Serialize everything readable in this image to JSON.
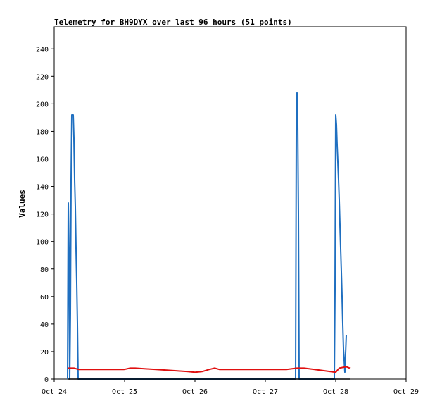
{
  "chart_data": {
    "type": "line",
    "title": "Telemetry for BH9DYX over last 96 hours (51 points)",
    "xlabel": "",
    "ylabel": "Values",
    "xlim": [
      "Oct 24",
      "Oct 29"
    ],
    "x_ticks": [
      "Oct 24",
      "Oct 25",
      "Oct 26",
      "Oct 27",
      "Oct 28",
      "Oct 29"
    ],
    "ylim": [
      0,
      256
    ],
    "y_ticks": [
      0,
      20,
      40,
      60,
      80,
      100,
      120,
      140,
      160,
      180,
      200,
      220,
      240
    ],
    "grid": false,
    "legend": "none",
    "series": [
      {
        "color": "#1f6fc0",
        "x": [
          0.19,
          0.2,
          0.21,
          0.22,
          0.23,
          0.24,
          0.25,
          0.26,
          0.27,
          0.28,
          0.29,
          0.3,
          0.31,
          0.32,
          0.33,
          0.34,
          0.35,
          0.36,
          0.37,
          0.38,
          0.39,
          0.4,
          3.41,
          3.42,
          3.43,
          3.44,
          3.45,
          3.46,
          3.47,
          3.48,
          3.49,
          3.5,
          3.51,
          3.52,
          3.53,
          3.98,
          3.99,
          4.0,
          4.01,
          4.02,
          4.03,
          4.04,
          4.05,
          4.06,
          4.07,
          4.08,
          4.09,
          4.1,
          4.11,
          4.13,
          4.15
        ],
        "values": [
          0,
          128,
          95,
          0,
          48,
          145,
          192,
          192,
          192,
          175,
          145,
          125,
          95,
          70,
          40,
          0,
          0,
          0,
          0,
          0,
          0,
          0,
          0,
          0,
          0,
          180,
          208,
          185,
          120,
          0,
          0,
          0,
          0,
          0,
          0,
          0,
          65,
          192,
          185,
          170,
          158,
          145,
          130,
          112,
          95,
          78,
          60,
          40,
          22,
          5,
          32
        ]
      },
      {
        "color": "#e01010",
        "x": [
          0.19,
          0.28,
          0.35,
          0.45,
          0.6,
          0.75,
          0.85,
          0.99,
          1.08,
          1.15,
          1.3,
          1.45,
          1.6,
          1.75,
          1.9,
          2.0,
          2.1,
          2.2,
          2.28,
          2.35,
          2.5,
          2.7,
          2.9,
          3.1,
          3.3,
          3.45,
          3.55,
          3.7,
          3.85,
          4.0,
          4.05,
          4.1,
          4.15,
          4.2
        ],
        "values": [
          8,
          8,
          7,
          7,
          7,
          7,
          7,
          7,
          8,
          8,
          7.5,
          7,
          6.5,
          6,
          5.5,
          5,
          5.5,
          7,
          8,
          7,
          7,
          7,
          7,
          7,
          7,
          8,
          8,
          7,
          6,
          5,
          8,
          8.5,
          9,
          8
        ]
      },
      {
        "color": "#000000",
        "x": [
          0.19,
          4.2
        ],
        "values": [
          0,
          0
        ]
      }
    ]
  }
}
